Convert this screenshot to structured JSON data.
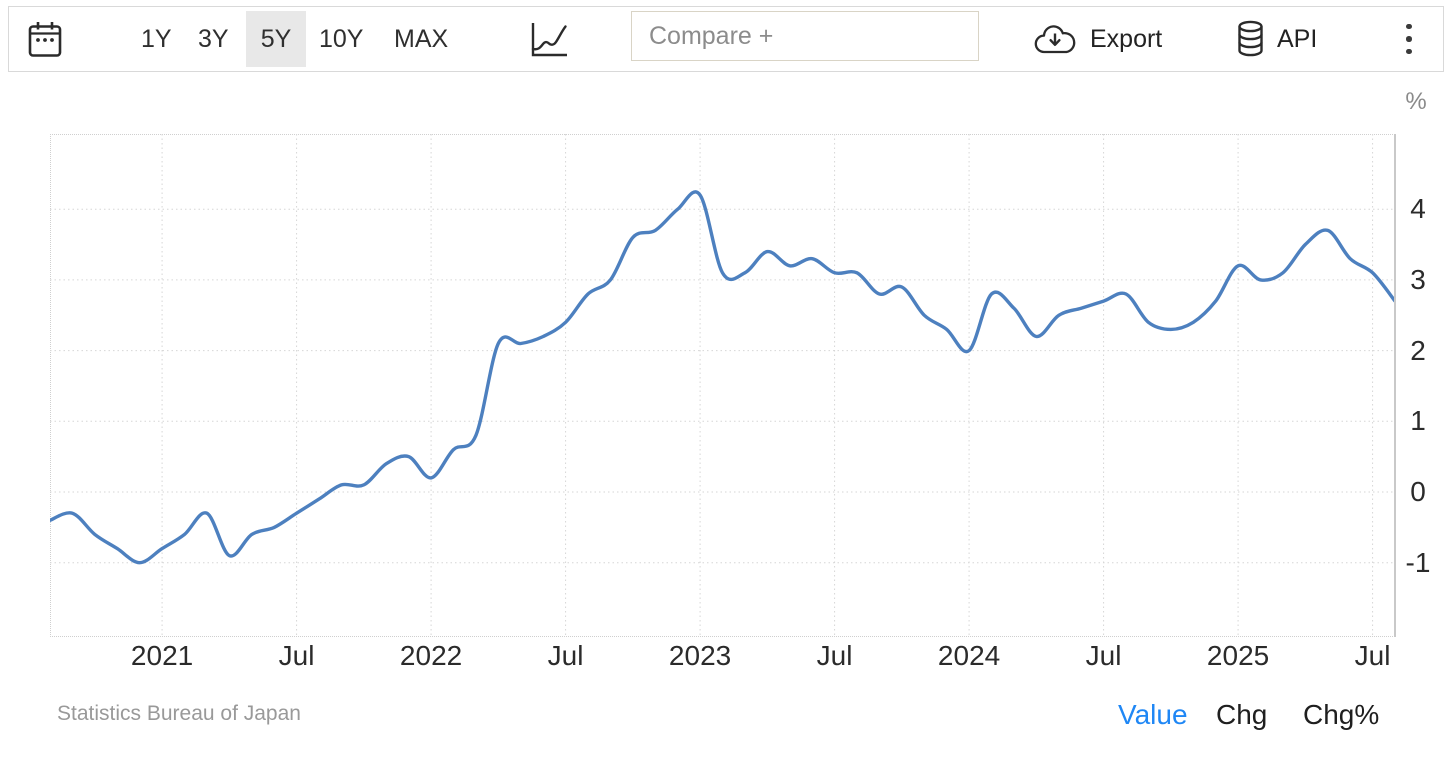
{
  "toolbar": {
    "ranges": [
      {
        "label": "1Y",
        "active": false
      },
      {
        "label": "3Y",
        "active": false
      },
      {
        "label": "5Y",
        "active": true
      },
      {
        "label": "10Y",
        "active": false
      },
      {
        "label": "MAX",
        "active": false
      }
    ],
    "compare_placeholder": "Compare +",
    "export_label": "Export",
    "api_label": "API",
    "icons": [
      "calendar-icon",
      "line-chart-icon",
      "cloud-download-icon",
      "database-icon",
      "kebab-menu-icon"
    ]
  },
  "chart_data": {
    "type": "line",
    "x": [
      "2020-08",
      "2020-09",
      "2020-10",
      "2020-11",
      "2020-12",
      "2021-01",
      "2021-02",
      "2021-03",
      "2021-04",
      "2021-05",
      "2021-06",
      "2021-07",
      "2021-08",
      "2021-09",
      "2021-10",
      "2021-11",
      "2021-12",
      "2022-01",
      "2022-02",
      "2022-03",
      "2022-04",
      "2022-05",
      "2022-06",
      "2022-07",
      "2022-08",
      "2022-09",
      "2022-10",
      "2022-11",
      "2022-12",
      "2023-01",
      "2023-02",
      "2023-03",
      "2023-04",
      "2023-05",
      "2023-06",
      "2023-07",
      "2023-08",
      "2023-09",
      "2023-10",
      "2023-11",
      "2023-12",
      "2024-01",
      "2024-02",
      "2024-03",
      "2024-04",
      "2024-05",
      "2024-06",
      "2024-07",
      "2024-08",
      "2024-09",
      "2024-10",
      "2024-11",
      "2024-12",
      "2025-01",
      "2025-02",
      "2025-03",
      "2025-04",
      "2025-05",
      "2025-06",
      "2025-07",
      "2025-08"
    ],
    "values": [
      -0.4,
      -0.3,
      -0.6,
      -0.8,
      -1.0,
      -0.8,
      -0.6,
      -0.3,
      -0.9,
      -0.6,
      -0.5,
      -0.3,
      -0.1,
      0.1,
      0.1,
      0.4,
      0.5,
      0.2,
      0.6,
      0.8,
      2.1,
      2.1,
      2.2,
      2.4,
      2.8,
      3.0,
      3.6,
      3.7,
      4.0,
      4.2,
      3.1,
      3.1,
      3.4,
      3.2,
      3.3,
      3.1,
      3.1,
      2.8,
      2.9,
      2.5,
      2.3,
      2.0,
      2.8,
      2.6,
      2.2,
      2.5,
      2.6,
      2.7,
      2.8,
      2.4,
      2.3,
      2.4,
      2.7,
      3.2,
      3.0,
      3.1,
      3.5,
      3.7,
      3.3,
      3.1,
      2.7
    ],
    "ylabel": "%",
    "ylim": [
      -2.1,
      5.1
    ],
    "y_ticks": [
      4,
      3,
      2,
      1,
      0,
      -1
    ],
    "x_tick_labels": [
      "2021",
      "Jul",
      "2022",
      "Jul",
      "2023",
      "Jul",
      "2024",
      "Jul",
      "2025",
      "Jul"
    ],
    "grid": true,
    "legend": false
  },
  "footer": {
    "source": "Statistics Bureau of Japan",
    "modes": [
      {
        "label": "Value",
        "active": true
      },
      {
        "label": "Chg",
        "active": false
      },
      {
        "label": "Chg%",
        "active": false
      }
    ]
  },
  "colors": {
    "line": "#4d80bf",
    "active_mode_blue": "#1f87f5",
    "range_active_bg": "#e8e8e8",
    "gridline": "#d6d6d6",
    "axis": "#c9c9c9",
    "toolbar_border": "#d9d9d9",
    "compare_border": "#d9d4c6",
    "muted_text": "#8c8c8c",
    "source_text": "#999999"
  }
}
